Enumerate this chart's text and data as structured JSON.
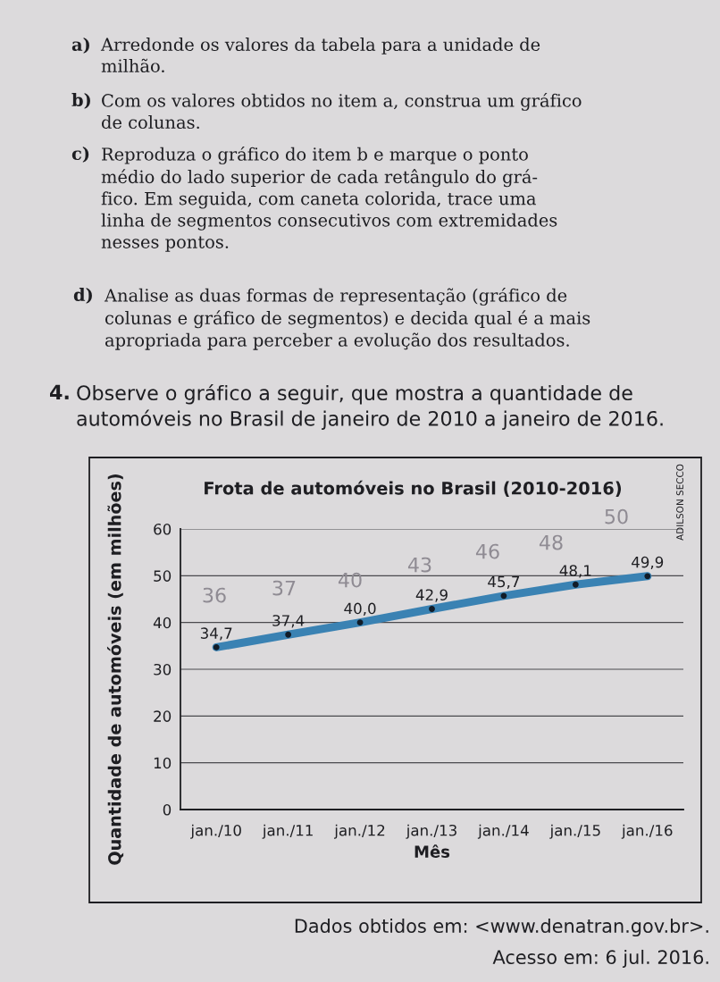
{
  "chart_data": {
    "type": "line",
    "title": "Frota de automóveis no Brasil (2010-2016)",
    "xlabel": "Mês",
    "ylabel": "Quantidade de automóveis (em milhões)",
    "categories": [
      "jan./10",
      "jan./11",
      "jan./12",
      "jan./13",
      "jan./14",
      "jan./15",
      "jan./16"
    ],
    "series": [
      {
        "color": "#3a82b3",
        "values": [
          34.7,
          37.4,
          40.0,
          42.9,
          45.7,
          48.1,
          49.9
        ],
        "value_labels": [
          "34,7",
          "37,4",
          "40,0",
          "42,9",
          "45,7",
          "48,1",
          "49,9"
        ]
      }
    ],
    "ylim": [
      0,
      60
    ],
    "yticks": [
      0,
      10,
      20,
      30,
      40,
      50,
      60
    ],
    "grid": "y",
    "marker": "circle",
    "line_style": "solid",
    "annotations": [
      "a)",
      "Arredonde os valores da tabela para a unidade de\nmilhão.",
      "b)",
      "Com os valores obtidos no item a, construa um gráfico\nde colunas.",
      "c)",
      "Reproduza o gráfico do item b e marque o ponto\nmédio do lado superior de cada retângulo do grá-\nfico. Em seguida, com caneta colorida, trace uma\nlinha de segmentos consecutivos com extremidades\nnesses pontos.",
      "d)",
      "Analise as duas formas de representação (gráfico de\ncolunas e gráfico de segmentos) e decida qual é a mais\napropriada para perceber a evolução dos resultados.",
      "4.",
      "Observe o gráfico a seguir, que mostra a quantidade de\nautomóveis no Brasil de janeiro de 2010 a janeiro de 2016.",
      "ADILSON SECCO",
      "Dados obtidos em: <www.denatran.gov.br>.",
      "Acesso em: 6 jul. 2016.",
      "36",
      "37",
      "40",
      "43",
      "46",
      "48",
      "50"
    ]
  }
}
